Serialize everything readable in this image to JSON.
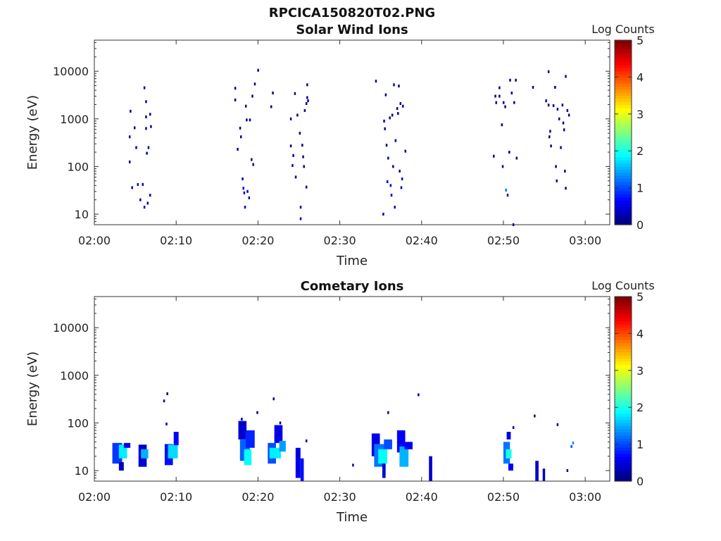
{
  "figure_title": "RPCICA150820T02.PNG",
  "chart_data": [
    {
      "type": "heatmap",
      "title": "Solar Wind Ions",
      "xlabel": "Time",
      "ylabel": "Energy (eV)",
      "colorbar_label": "Log Counts",
      "yscale": "log",
      "ylim": [
        6,
        45000
      ],
      "xlim": [
        "02:00",
        "03:03"
      ],
      "x_tick_labels": [
        "02:00",
        "02:10",
        "02:20",
        "02:30",
        "02:40",
        "02:50",
        "03:00"
      ],
      "y_tick_labels": [
        "10",
        "100",
        "1000",
        "10000"
      ],
      "colorbar_range": [
        0,
        5
      ],
      "colorbar_tick_labels": [
        "0",
        "1",
        "2",
        "3",
        "4",
        "5"
      ],
      "colormap": "jet",
      "points": [
        {
          "t": 4.3,
          "e": 420,
          "c": 0.1
        },
        {
          "t": 4.4,
          "e": 1450,
          "c": 0.1
        },
        {
          "t": 4.3,
          "e": 125,
          "c": 0.1
        },
        {
          "t": 4.6,
          "e": 36,
          "c": 0.2
        },
        {
          "t": 4.9,
          "e": 650,
          "c": 0.1
        },
        {
          "t": 5.1,
          "e": 250,
          "c": 0.1
        },
        {
          "t": 5.3,
          "e": 42,
          "c": 0.2
        },
        {
          "t": 5.6,
          "e": 20,
          "c": 0.3
        },
        {
          "t": 5.9,
          "e": 42,
          "c": 0.2
        },
        {
          "t": 6.1,
          "e": 14,
          "c": 0.3
        },
        {
          "t": 6.1,
          "e": 4500,
          "c": 0.1
        },
        {
          "t": 6.3,
          "e": 2300,
          "c": 0.1
        },
        {
          "t": 6.3,
          "e": 1100,
          "c": 0.1
        },
        {
          "t": 6.3,
          "e": 630,
          "c": 0.1
        },
        {
          "t": 6.4,
          "e": 190,
          "c": 0.1
        },
        {
          "t": 6.5,
          "e": 17,
          "c": 0.2
        },
        {
          "t": 6.6,
          "e": 250,
          "c": 0.1
        },
        {
          "t": 6.8,
          "e": 1250,
          "c": 0.1
        },
        {
          "t": 6.8,
          "e": 25,
          "c": 0.2
        },
        {
          "t": 6.9,
          "e": 690,
          "c": 0.1
        },
        {
          "t": 17.2,
          "e": 4400,
          "c": 0.1
        },
        {
          "t": 17.2,
          "e": 2500,
          "c": 0.1
        },
        {
          "t": 17.5,
          "e": 230,
          "c": 0.1
        },
        {
          "t": 17.8,
          "e": 640,
          "c": 0.1
        },
        {
          "t": 17.9,
          "e": 420,
          "c": 0.1
        },
        {
          "t": 18.1,
          "e": 55,
          "c": 0.3
        },
        {
          "t": 18.2,
          "e": 35,
          "c": 0.4
        },
        {
          "t": 18.3,
          "e": 28,
          "c": 0.3
        },
        {
          "t": 18.4,
          "e": 14,
          "c": 0.3
        },
        {
          "t": 18.5,
          "e": 1850,
          "c": 0.1
        },
        {
          "t": 18.6,
          "e": 950,
          "c": 0.1
        },
        {
          "t": 18.7,
          "e": 30,
          "c": 0.4
        },
        {
          "t": 18.9,
          "e": 22,
          "c": 0.4
        },
        {
          "t": 19.0,
          "e": 950,
          "c": 0.1
        },
        {
          "t": 19.2,
          "e": 140,
          "c": 0.1
        },
        {
          "t": 19.3,
          "e": 3000,
          "c": 0.1
        },
        {
          "t": 19.4,
          "e": 110,
          "c": 0.1
        },
        {
          "t": 19.6,
          "e": 5400,
          "c": 0.1
        },
        {
          "t": 20.0,
          "e": 10500,
          "c": 0.1
        },
        {
          "t": 21.8,
          "e": 3500,
          "c": 0.1
        },
        {
          "t": 21.6,
          "e": 1800,
          "c": 0.1
        },
        {
          "t": 24.0,
          "e": 270,
          "c": 0.1
        },
        {
          "t": 24.0,
          "e": 1000,
          "c": 0.1
        },
        {
          "t": 24.2,
          "e": 105,
          "c": 0.1
        },
        {
          "t": 24.3,
          "e": 170,
          "c": 0.1
        },
        {
          "t": 24.5,
          "e": 3400,
          "c": 0.1
        },
        {
          "t": 24.6,
          "e": 60,
          "c": 0.2
        },
        {
          "t": 24.8,
          "e": 1200,
          "c": 0.1
        },
        {
          "t": 25.1,
          "e": 500,
          "c": 0.1
        },
        {
          "t": 25.2,
          "e": 14,
          "c": 0.3
        },
        {
          "t": 25.2,
          "e": 8,
          "c": 0.3
        },
        {
          "t": 25.4,
          "e": 280,
          "c": 0.1
        },
        {
          "t": 25.5,
          "e": 160,
          "c": 0.1
        },
        {
          "t": 25.6,
          "e": 100,
          "c": 0.1
        },
        {
          "t": 25.7,
          "e": 1500,
          "c": 0.1
        },
        {
          "t": 25.9,
          "e": 2100,
          "c": 0.1
        },
        {
          "t": 25.9,
          "e": 37,
          "c": 0.2
        },
        {
          "t": 26.0,
          "e": 5200,
          "c": 0.1
        },
        {
          "t": 26.1,
          "e": 2400,
          "c": 0.1
        },
        {
          "t": 26.0,
          "e": 2800,
          "c": 0.1
        },
        {
          "t": 34.4,
          "e": 6200,
          "c": 0.1
        },
        {
          "t": 35.3,
          "e": 10,
          "c": 0.3
        },
        {
          "t": 35.4,
          "e": 900,
          "c": 0.1
        },
        {
          "t": 35.5,
          "e": 620,
          "c": 0.1
        },
        {
          "t": 35.6,
          "e": 3200,
          "c": 0.1
        },
        {
          "t": 35.7,
          "e": 280,
          "c": 0.1
        },
        {
          "t": 35.8,
          "e": 48,
          "c": 0.3
        },
        {
          "t": 35.9,
          "e": 150,
          "c": 0.1
        },
        {
          "t": 36.1,
          "e": 1050,
          "c": 0.1
        },
        {
          "t": 36.2,
          "e": 40,
          "c": 0.4
        },
        {
          "t": 36.3,
          "e": 25,
          "c": 0.4
        },
        {
          "t": 36.4,
          "e": 1200,
          "c": 0.1
        },
        {
          "t": 36.5,
          "e": 100,
          "c": 0.1
        },
        {
          "t": 36.6,
          "e": 5200,
          "c": 0.1
        },
        {
          "t": 36.7,
          "e": 14,
          "c": 0.3
        },
        {
          "t": 36.8,
          "e": 350,
          "c": 0.1
        },
        {
          "t": 37.0,
          "e": 1650,
          "c": 0.1
        },
        {
          "t": 37.1,
          "e": 1300,
          "c": 0.1
        },
        {
          "t": 37.2,
          "e": 4900,
          "c": 0.1
        },
        {
          "t": 37.3,
          "e": 80,
          "c": 0.1
        },
        {
          "t": 37.4,
          "e": 2100,
          "c": 0.1
        },
        {
          "t": 37.5,
          "e": 36,
          "c": 0.2
        },
        {
          "t": 37.6,
          "e": 55,
          "c": 0.2
        },
        {
          "t": 37.7,
          "e": 1850,
          "c": 0.1
        },
        {
          "t": 38.0,
          "e": 210,
          "c": 0.1
        },
        {
          "t": 48.8,
          "e": 165,
          "c": 0.1
        },
        {
          "t": 49.0,
          "e": 3000,
          "c": 0.1
        },
        {
          "t": 49.1,
          "e": 2200,
          "c": 0.1
        },
        {
          "t": 49.5,
          "e": 3000,
          "c": 0.1
        },
        {
          "t": 49.5,
          "e": 4500,
          "c": 0.1
        },
        {
          "t": 49.8,
          "e": 750,
          "c": 0.1
        },
        {
          "t": 49.9,
          "e": 100,
          "c": 0.1
        },
        {
          "t": 50.0,
          "e": 2200,
          "c": 0.1
        },
        {
          "t": 50.2,
          "e": 1800,
          "c": 0.1
        },
        {
          "t": 50.3,
          "e": 32,
          "c": 1.2
        },
        {
          "t": 50.5,
          "e": 25,
          "c": 0.4
        },
        {
          "t": 50.7,
          "e": 200,
          "c": 0.1
        },
        {
          "t": 50.8,
          "e": 6500,
          "c": 0.1
        },
        {
          "t": 51.0,
          "e": 3500,
          "c": 0.1
        },
        {
          "t": 51.3,
          "e": 2200,
          "c": 0.1
        },
        {
          "t": 51.5,
          "e": 6500,
          "c": 0.1
        },
        {
          "t": 51.2,
          "e": 6,
          "c": 0.3
        },
        {
          "t": 51.6,
          "e": 150,
          "c": 0.1
        },
        {
          "t": 53.6,
          "e": 4600,
          "c": 0.1
        },
        {
          "t": 55.2,
          "e": 2400,
          "c": 0.1
        },
        {
          "t": 55.5,
          "e": 9800,
          "c": 0.1
        },
        {
          "t": 55.5,
          "e": 1950,
          "c": 0.1
        },
        {
          "t": 55.6,
          "e": 420,
          "c": 0.1
        },
        {
          "t": 55.7,
          "e": 550,
          "c": 0.1
        },
        {
          "t": 55.8,
          "e": 270,
          "c": 0.1
        },
        {
          "t": 56.1,
          "e": 1900,
          "c": 0.1
        },
        {
          "t": 56.3,
          "e": 4600,
          "c": 0.1
        },
        {
          "t": 56.4,
          "e": 100,
          "c": 0.1
        },
        {
          "t": 56.5,
          "e": 50,
          "c": 0.2
        },
        {
          "t": 56.6,
          "e": 1600,
          "c": 0.1
        },
        {
          "t": 56.8,
          "e": 1000,
          "c": 0.1
        },
        {
          "t": 57.0,
          "e": 250,
          "c": 0.1
        },
        {
          "t": 57.2,
          "e": 1950,
          "c": 0.1
        },
        {
          "t": 57.3,
          "e": 820,
          "c": 0.1
        },
        {
          "t": 57.4,
          "e": 590,
          "c": 0.1
        },
        {
          "t": 57.5,
          "e": 80,
          "c": 0.1
        },
        {
          "t": 57.6,
          "e": 35,
          "c": 0.2
        },
        {
          "t": 57.6,
          "e": 7800,
          "c": 0.1
        },
        {
          "t": 57.8,
          "e": 1500,
          "c": 0.1
        },
        {
          "t": 58.0,
          "e": 1200,
          "c": 0.1
        }
      ]
    },
    {
      "type": "heatmap",
      "title": "Cometary Ions",
      "xlabel": "Time",
      "ylabel": "Energy (eV)",
      "colorbar_label": "Log Counts",
      "yscale": "log",
      "ylim": [
        6,
        45000
      ],
      "xlim": [
        "02:00",
        "03:03"
      ],
      "x_tick_labels": [
        "02:00",
        "02:10",
        "02:20",
        "02:30",
        "02:40",
        "02:50",
        "03:00"
      ],
      "y_tick_labels": [
        "10",
        "100",
        "1000",
        "10000"
      ],
      "colorbar_range": [
        0,
        5
      ],
      "colorbar_tick_labels": [
        "0",
        "1",
        "2",
        "3",
        "4",
        "5"
      ],
      "colormap": "jet",
      "blocks": [
        {
          "t0": 2.2,
          "t1": 3.4,
          "e0": 14,
          "e1": 38,
          "c": 0.9
        },
        {
          "t0": 3.0,
          "t1": 4.0,
          "e0": 18,
          "e1": 35,
          "c": 1.8
        },
        {
          "t0": 3.0,
          "t1": 3.6,
          "e0": 10,
          "e1": 15,
          "c": 0.3
        },
        {
          "t0": 3.6,
          "t1": 4.4,
          "e0": 30,
          "e1": 38,
          "c": 0.5
        },
        {
          "t0": 5.4,
          "t1": 6.4,
          "e0": 12,
          "e1": 35,
          "c": 0.4
        },
        {
          "t0": 5.7,
          "t1": 6.6,
          "e0": 18,
          "e1": 28,
          "c": 1.5
        },
        {
          "t0": 8.6,
          "t1": 9.6,
          "e0": 13,
          "e1": 36,
          "c": 0.7
        },
        {
          "t0": 9.0,
          "t1": 10.2,
          "e0": 18,
          "e1": 35,
          "c": 1.7
        },
        {
          "t0": 9.7,
          "t1": 10.3,
          "e0": 34,
          "e1": 65,
          "c": 0.6
        },
        {
          "t0": 17.6,
          "t1": 18.6,
          "e0": 45,
          "e1": 110,
          "c": 0.4
        },
        {
          "t0": 17.8,
          "t1": 19.0,
          "e0": 16,
          "e1": 45,
          "c": 1.1
        },
        {
          "t0": 18.3,
          "t1": 19.2,
          "e0": 13,
          "e1": 28,
          "c": 1.9
        },
        {
          "t0": 18.5,
          "t1": 19.6,
          "e0": 30,
          "e1": 70,
          "c": 0.8
        },
        {
          "t0": 21.2,
          "t1": 22.2,
          "e0": 14,
          "e1": 38,
          "c": 1.0
        },
        {
          "t0": 21.4,
          "t1": 22.8,
          "e0": 18,
          "e1": 30,
          "c": 1.8
        },
        {
          "t0": 22.0,
          "t1": 23.0,
          "e0": 38,
          "e1": 90,
          "c": 0.5
        },
        {
          "t0": 22.6,
          "t1": 23.4,
          "e0": 25,
          "e1": 42,
          "c": 1.4
        },
        {
          "t0": 24.6,
          "t1": 25.2,
          "e0": 7,
          "e1": 30,
          "c": 0.5
        },
        {
          "t0": 25.2,
          "t1": 25.6,
          "e0": 6,
          "e1": 18,
          "c": 0.7
        },
        {
          "t0": 33.9,
          "t1": 34.9,
          "e0": 20,
          "e1": 60,
          "c": 0.5
        },
        {
          "t0": 34.2,
          "t1": 35.6,
          "e0": 12,
          "e1": 36,
          "c": 1.2
        },
        {
          "t0": 34.7,
          "t1": 35.8,
          "e0": 14,
          "e1": 28,
          "c": 1.9
        },
        {
          "t0": 35.4,
          "t1": 36.4,
          "e0": 28,
          "e1": 45,
          "c": 1.0
        },
        {
          "t0": 35.2,
          "t1": 35.6,
          "e0": 7,
          "e1": 14,
          "c": 0.4
        },
        {
          "t0": 37.0,
          "t1": 38.0,
          "e0": 24,
          "e1": 70,
          "c": 0.6
        },
        {
          "t0": 37.3,
          "t1": 38.4,
          "e0": 12,
          "e1": 32,
          "c": 1.5
        },
        {
          "t0": 37.9,
          "t1": 38.9,
          "e0": 28,
          "e1": 40,
          "c": 0.6
        },
        {
          "t0": 40.9,
          "t1": 41.3,
          "e0": 6,
          "e1": 20,
          "c": 0.4
        },
        {
          "t0": 50.0,
          "t1": 50.8,
          "e0": 14,
          "e1": 40,
          "c": 1.2
        },
        {
          "t0": 50.3,
          "t1": 51.0,
          "e0": 18,
          "e1": 28,
          "c": 2.0
        },
        {
          "t0": 50.4,
          "t1": 50.9,
          "e0": 45,
          "e1": 65,
          "c": 0.5
        },
        {
          "t0": 50.6,
          "t1": 51.2,
          "e0": 10,
          "e1": 14,
          "c": 0.6
        },
        {
          "t0": 53.9,
          "t1": 54.3,
          "e0": 6,
          "e1": 16,
          "c": 0.4
        },
        {
          "t0": 54.8,
          "t1": 55.1,
          "e0": 6,
          "e1": 11,
          "c": 0.3
        }
      ],
      "points": [
        {
          "t": 8.5,
          "e": 290,
          "c": 0.1
        },
        {
          "t": 8.9,
          "e": 410,
          "c": 0.1
        },
        {
          "t": 8.8,
          "e": 95,
          "c": 0.2
        },
        {
          "t": 18.0,
          "e": 120,
          "c": 0.3
        },
        {
          "t": 19.9,
          "e": 165,
          "c": 0.1
        },
        {
          "t": 21.9,
          "e": 320,
          "c": 0.1
        },
        {
          "t": 22.7,
          "e": 100,
          "c": 0.2
        },
        {
          "t": 25.9,
          "e": 42,
          "c": 0.2
        },
        {
          "t": 31.6,
          "e": 13,
          "c": 0.2
        },
        {
          "t": 35.9,
          "e": 165,
          "c": 0.1
        },
        {
          "t": 39.6,
          "e": 390,
          "c": 0.1
        },
        {
          "t": 51.2,
          "e": 80,
          "c": 0.2
        },
        {
          "t": 53.8,
          "e": 140,
          "c": 0.2
        },
        {
          "t": 56.6,
          "e": 92,
          "c": 0.1
        },
        {
          "t": 57.8,
          "e": 10,
          "c": 0.3
        },
        {
          "t": 58.5,
          "e": 38,
          "c": 1.3
        },
        {
          "t": 58.3,
          "e": 32,
          "c": 1.0
        }
      ]
    }
  ]
}
